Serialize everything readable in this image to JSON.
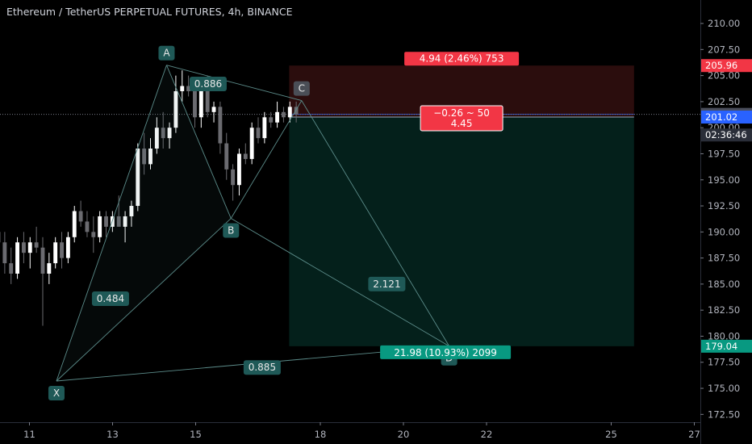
{
  "header": {
    "title": "Ethereum / TetherUS PERPETUAL FUTURES, 4h, BINANCE"
  },
  "chart_data": {
    "type": "candlestick",
    "title": "Ethereum / TetherUS PERPETUAL FUTURES, 4h, BINANCE",
    "ylim": [
      171.75,
      212.25
    ],
    "xlim": [
      10.1,
      27.0
    ],
    "y_ticks": [
      "172.50",
      "175.00",
      "177.50",
      "180.00",
      "182.50",
      "185.00",
      "187.50",
      "190.00",
      "192.50",
      "195.00",
      "197.50",
      "200.00",
      "202.50",
      "205.00",
      "207.50",
      "210.00"
    ],
    "x_ticks": [
      {
        "day": 11,
        "label": "11"
      },
      {
        "day": 13,
        "label": "13"
      },
      {
        "day": 15,
        "label": "15"
      },
      {
        "day": 18,
        "label": "18"
      },
      {
        "day": 20,
        "label": "20"
      },
      {
        "day": 22,
        "label": "22"
      },
      {
        "day": 25,
        "label": "25"
      },
      {
        "day": 27,
        "label": "27"
      }
    ],
    "price_labels": [
      {
        "label": "205.96",
        "value": 205.96,
        "color": "#f23645"
      },
      {
        "label": "201.28",
        "value": 201.28,
        "color": "#4a4e5c"
      },
      {
        "label": "02:36:46",
        "value": 199.3,
        "color": "#2a2e39"
      },
      {
        "label": "201.02",
        "value": 201.02,
        "color": "#2962ff"
      },
      {
        "label": "179.04",
        "value": 179.04,
        "color": "#089981"
      }
    ],
    "last_price": 201.28,
    "candles_ohlc": [
      [
        189.5,
        191.0,
        187.0,
        190.0
      ],
      [
        190.0,
        191.5,
        188.5,
        189.0
      ],
      [
        189.0,
        190.0,
        186.0,
        187.0
      ],
      [
        187.0,
        188.5,
        185.0,
        186.0
      ],
      [
        186.0,
        189.5,
        185.5,
        189.0
      ],
      [
        189.0,
        190.0,
        187.0,
        188.0
      ],
      [
        188.0,
        189.5,
        186.5,
        189.0
      ],
      [
        189.0,
        190.5,
        188.0,
        188.5
      ],
      [
        188.5,
        189.5,
        181.0,
        186.0
      ],
      [
        186.0,
        188.0,
        185.0,
        187.0
      ],
      [
        187.0,
        189.5,
        186.5,
        189.0
      ],
      [
        189.0,
        190.0,
        186.5,
        187.5
      ],
      [
        187.5,
        190.0,
        187.0,
        189.5
      ],
      [
        189.5,
        192.5,
        189.0,
        192.0
      ],
      [
        192.0,
        193.0,
        190.5,
        191.0
      ],
      [
        191.0,
        192.0,
        189.5,
        190.0
      ],
      [
        190.0,
        191.5,
        188.0,
        189.5
      ],
      [
        189.5,
        192.0,
        189.0,
        191.5
      ],
      [
        191.5,
        192.0,
        189.5,
        190.5
      ],
      [
        190.5,
        192.0,
        190.0,
        191.5
      ],
      [
        191.5,
        193.5,
        190.5,
        190.5
      ],
      [
        190.5,
        192.0,
        189.0,
        191.5
      ],
      [
        191.5,
        193.0,
        190.5,
        192.5
      ],
      [
        192.5,
        198.5,
        192.0,
        198.0
      ],
      [
        198.0,
        199.5,
        195.5,
        196.5
      ],
      [
        196.5,
        199.0,
        196.0,
        198.0
      ],
      [
        198.0,
        201.0,
        197.5,
        200.0
      ],
      [
        200.0,
        201.5,
        198.0,
        199.0
      ],
      [
        199.0,
        200.5,
        198.0,
        200.0
      ],
      [
        200.0,
        205.0,
        199.5,
        203.5
      ],
      [
        203.5,
        205.5,
        202.5,
        204.0
      ],
      [
        204.0,
        205.0,
        203.0,
        203.5
      ],
      [
        203.5,
        204.5,
        200.0,
        201.0
      ],
      [
        201.0,
        204.5,
        200.0,
        204.0
      ],
      [
        204.0,
        205.0,
        201.0,
        201.5
      ],
      [
        201.5,
        202.5,
        200.5,
        202.0
      ],
      [
        202.0,
        202.5,
        197.5,
        198.5
      ],
      [
        198.5,
        199.5,
        195.0,
        196.0
      ],
      [
        196.0,
        196.5,
        193.0,
        194.5
      ],
      [
        194.5,
        198.0,
        193.5,
        197.5
      ],
      [
        197.5,
        198.5,
        196.5,
        197.0
      ],
      [
        197.0,
        200.5,
        196.5,
        200.0
      ],
      [
        200.0,
        201.0,
        198.5,
        199.0
      ],
      [
        199.0,
        201.5,
        198.5,
        201.0
      ],
      [
        201.0,
        201.5,
        200.0,
        200.5
      ],
      [
        200.5,
        202.5,
        200.0,
        201.5
      ],
      [
        201.5,
        202.0,
        200.5,
        201.0
      ],
      [
        201.0,
        202.5,
        200.5,
        202.0
      ],
      [
        202.0,
        202.5,
        200.5,
        201.28
      ]
    ],
    "harmonic_pattern": {
      "points": [
        {
          "label": "X",
          "t": 11.65,
          "price": 175.7
        },
        {
          "label": "A",
          "t": 14.3,
          "price": 206.0
        },
        {
          "label": "B",
          "t": 15.85,
          "price": 191.3
        },
        {
          "label": "C",
          "t": 17.55,
          "price": 202.6
        },
        {
          "label": "D",
          "t": 21.1,
          "price": 179.05
        }
      ],
      "ratios": [
        {
          "label": "0.886",
          "t": 15.3,
          "price": 204.2
        },
        {
          "label": "0.484",
          "t": 12.95,
          "price": 183.6
        },
        {
          "label": "2.121",
          "t": 19.6,
          "price": 185.0
        },
        {
          "label": "0.885",
          "t": 16.6,
          "price": 177.0
        }
      ]
    },
    "position": {
      "entry": 201.02,
      "stop": 205.96,
      "target": 179.04,
      "start_day": 17.25,
      "end_day": 25.55,
      "stop_label": "4.94 (2.46%) 753",
      "target_label": "21.98 (10.93%) 2099",
      "center_line1": "−0.26 ~ 50",
      "center_line2": "4.45"
    }
  }
}
